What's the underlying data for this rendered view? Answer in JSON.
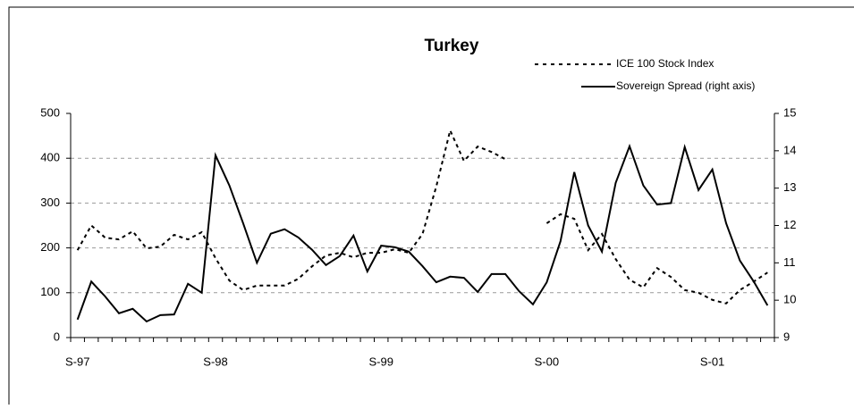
{
  "chart_data": {
    "type": "line",
    "title": "Turkey",
    "categories": [
      "S-97",
      null,
      null,
      null,
      null,
      null,
      null,
      null,
      null,
      null,
      "S-98",
      null,
      null,
      null,
      null,
      null,
      null,
      null,
      null,
      null,
      null,
      null,
      "S-99",
      null,
      null,
      null,
      null,
      null,
      null,
      null,
      null,
      null,
      null,
      null,
      "S-00",
      null,
      null,
      null,
      null,
      null,
      null,
      null,
      null,
      null,
      null,
      null,
      "S-01",
      null,
      null,
      null,
      null
    ],
    "series": [
      {
        "name": "ICE 100 Stock Index",
        "color": "#000000",
        "style": "dashed",
        "axis": "y",
        "values": [
          195,
          250,
          223,
          219,
          237,
          199,
          203,
          229,
          219,
          235,
          177,
          127,
          106,
          116,
          116,
          116,
          131,
          159,
          183,
          189,
          179,
          189,
          189,
          197,
          189,
          231,
          337,
          462,
          394,
          426,
          414,
          398,
          null,
          null,
          255,
          275,
          265,
          195,
          231,
          175,
          129,
          112,
          155,
          135,
          106,
          100,
          84,
          76,
          106,
          125,
          145
        ]
      },
      {
        "name": "Sovereign Spread (right axis)",
        "color": "#000000",
        "style": "solid",
        "axis": "y2",
        "values": [
          9.48,
          10.5,
          10.1,
          9.65,
          9.77,
          9.43,
          9.6,
          9.62,
          10.44,
          10.2,
          13.88,
          13.07,
          12.06,
          11.0,
          11.78,
          11.9,
          11.68,
          11.35,
          10.94,
          11.18,
          11.73,
          10.77,
          11.46,
          11.42,
          11.3,
          10.91,
          10.48,
          10.63,
          10.6,
          10.22,
          10.7,
          10.7,
          10.24,
          9.89,
          10.48,
          11.58,
          13.43,
          12.0,
          11.3,
          13.14,
          14.12,
          13.07,
          12.56,
          12.6,
          14.1,
          12.95,
          13.5,
          12.06,
          11.06,
          10.5,
          9.86
        ]
      }
    ],
    "ylim": [
      0,
      500
    ],
    "yticks": [
      0,
      100,
      200,
      300,
      400,
      500
    ],
    "y2lim": [
      9,
      15
    ],
    "y2ticks": [
      9,
      10,
      11,
      12,
      13,
      14,
      15
    ],
    "grid": true,
    "legend": "top-right"
  }
}
